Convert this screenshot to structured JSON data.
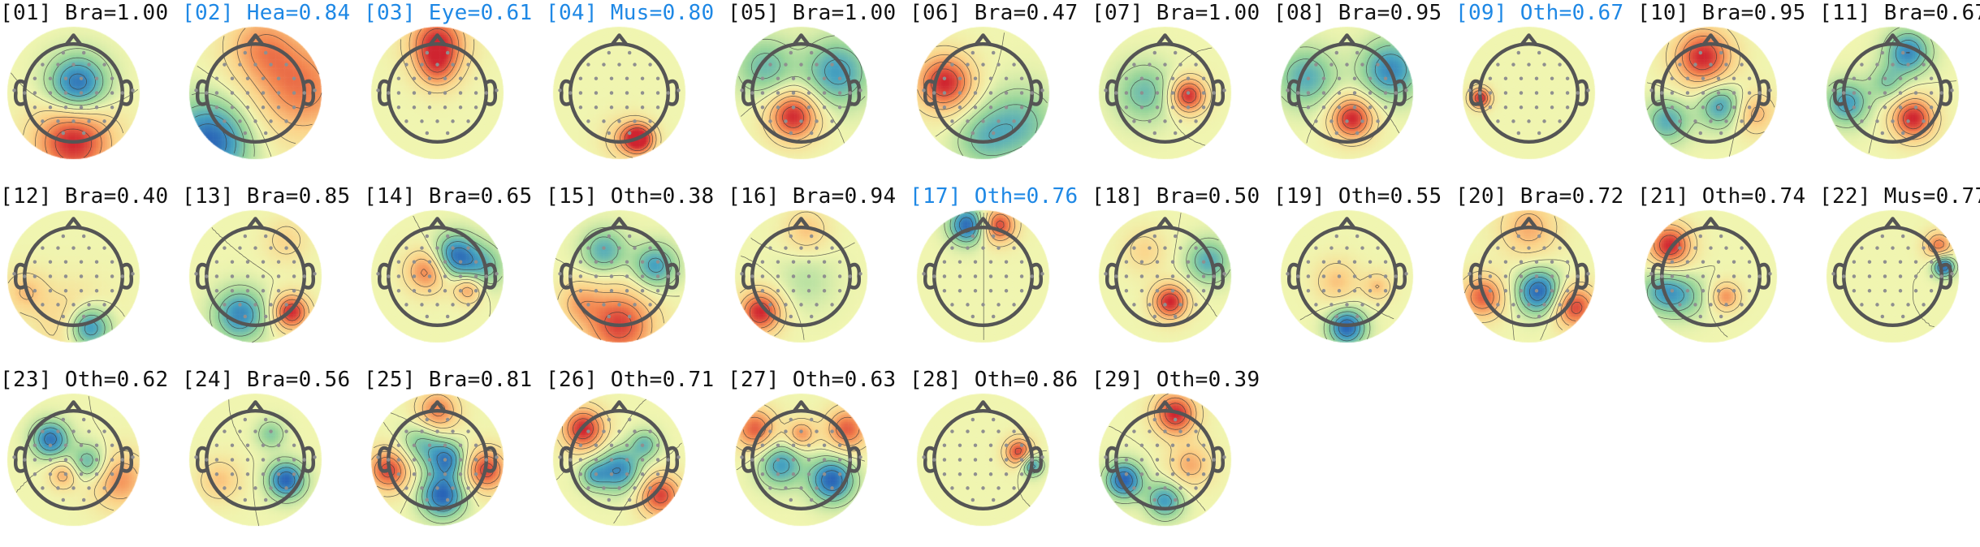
{
  "colors": {
    "flagged_label": "#1e88e5",
    "normal_label": "#111111",
    "head_outline": "#555555",
    "sensor_dot": "#8f8f8f",
    "colormap": [
      "#2a65b7",
      "#48a4c0",
      "#98d59a",
      "#f0f5b0",
      "#fbd48a",
      "#f38650",
      "#cf2530"
    ]
  },
  "components": [
    {
      "label": "[01] Bra=1.00",
      "flagged": false,
      "blobs": [
        [
          0.08,
          -0.15,
          0.4,
          -1.0
        ],
        [
          0.0,
          0.95,
          0.55,
          1.0
        ]
      ]
    },
    {
      "label": "[02] Hea=0.84",
      "flagged": true,
      "blobs": [
        [
          -0.9,
          0.95,
          0.55,
          -1.0
        ],
        [
          0.9,
          -0.1,
          0.7,
          0.7
        ],
        [
          0.1,
          -0.95,
          0.5,
          0.5
        ]
      ]
    },
    {
      "label": "[03] Eye=0.61",
      "flagged": true,
      "blobs": [
        [
          0.0,
          -1.0,
          0.4,
          0.95
        ],
        [
          0.0,
          -0.45,
          0.3,
          0.5
        ]
      ]
    },
    {
      "label": "[04] Mus=0.80",
      "flagged": true,
      "blobs": [
        [
          0.4,
          0.9,
          0.22,
          1.0
        ],
        [
          0.1,
          0.9,
          0.3,
          0.4
        ]
      ]
    },
    {
      "label": "[05] Bra=1.00",
      "flagged": false,
      "blobs": [
        [
          -0.15,
          0.45,
          0.35,
          1.0
        ],
        [
          0.7,
          -0.4,
          0.45,
          -0.7
        ],
        [
          -0.7,
          -0.5,
          0.4,
          -0.5
        ]
      ]
    },
    {
      "label": "[06] Bra=0.47",
      "flagged": false,
      "blobs": [
        [
          -0.75,
          -0.2,
          0.4,
          1.0
        ],
        [
          0.7,
          0.6,
          0.5,
          -0.5
        ],
        [
          0.0,
          0.9,
          0.4,
          -0.4
        ]
      ]
    },
    {
      "label": "[07] Bra=1.00",
      "flagged": false,
      "blobs": [
        [
          0.45,
          0.05,
          0.25,
          1.0
        ],
        [
          -0.4,
          0.0,
          0.4,
          -0.5
        ]
      ]
    },
    {
      "label": "[08] Bra=0.95",
      "flagged": false,
      "blobs": [
        [
          0.1,
          0.5,
          0.3,
          1.0
        ],
        [
          0.85,
          -0.45,
          0.4,
          -0.8
        ],
        [
          -0.8,
          -0.3,
          0.4,
          -0.6
        ]
      ]
    },
    {
      "label": "[09] Oth=0.67",
      "flagged": true,
      "blobs": [
        [
          -0.95,
          0.1,
          0.15,
          1.0
        ]
      ]
    },
    {
      "label": "[10] Bra=0.95",
      "flagged": false,
      "blobs": [
        [
          -0.15,
          -0.7,
          0.4,
          1.0
        ],
        [
          0.2,
          0.25,
          0.3,
          -0.7
        ],
        [
          -0.85,
          0.55,
          0.3,
          -0.6
        ],
        [
          0.85,
          0.4,
          0.3,
          0.5
        ]
      ]
    },
    {
      "label": "[11] Bra=0.67",
      "flagged": false,
      "blobs": [
        [
          0.4,
          0.5,
          0.3,
          1.0
        ],
        [
          0.3,
          -0.8,
          0.3,
          -0.8
        ],
        [
          -0.9,
          0.2,
          0.3,
          -0.7
        ],
        [
          -0.1,
          -0.2,
          0.25,
          -0.4
        ]
      ]
    },
    {
      "label": "[12] Bra=0.40",
      "flagged": false,
      "blobs": [
        [
          0.3,
          1.0,
          0.3,
          -1.0
        ],
        [
          0.0,
          0.9,
          0.5,
          0.4
        ],
        [
          -0.95,
          0.3,
          0.3,
          0.4
        ]
      ]
    },
    {
      "label": "[13] Bra=0.85",
      "flagged": false,
      "blobs": [
        [
          0.7,
          0.7,
          0.25,
          1.0
        ],
        [
          -0.3,
          0.75,
          0.35,
          -0.8
        ],
        [
          0.6,
          -0.7,
          0.3,
          0.3
        ]
      ]
    },
    {
      "label": "[14] Bra=0.65",
      "flagged": false,
      "blobs": [
        [
          0.35,
          -0.4,
          0.3,
          -0.9
        ],
        [
          -0.2,
          -0.1,
          0.3,
          0.7
        ],
        [
          0.6,
          0.25,
          0.2,
          0.6
        ],
        [
          0.9,
          -0.2,
          0.3,
          -0.5
        ]
      ]
    },
    {
      "label": "[15] Oth=0.38",
      "flagged": false,
      "blobs": [
        [
          -0.3,
          -0.5,
          0.3,
          -0.6
        ],
        [
          0.7,
          -0.2,
          0.3,
          -0.7
        ],
        [
          0.0,
          0.95,
          0.5,
          0.9
        ],
        [
          -0.8,
          0.5,
          0.3,
          0.4
        ]
      ]
    },
    {
      "label": "[16] Bra=0.94",
      "flagged": false,
      "blobs": [
        [
          -0.8,
          0.7,
          0.3,
          1.0
        ],
        [
          0.1,
          -0.9,
          0.3,
          0.4
        ],
        [
          0.1,
          0.1,
          0.4,
          -0.2
        ]
      ]
    },
    {
      "label": "[17] Oth=0.76",
      "flagged": true,
      "blobs": [
        [
          0.3,
          -1.0,
          0.25,
          0.9
        ],
        [
          -0.3,
          -1.0,
          0.25,
          -1.0
        ]
      ]
    },
    {
      "label": "[18] Bra=0.50",
      "flagged": false,
      "blobs": [
        [
          0.1,
          0.5,
          0.25,
          1.0
        ],
        [
          0.85,
          -0.3,
          0.3,
          -0.6
        ],
        [
          -0.4,
          -0.5,
          0.3,
          0.3
        ]
      ]
    },
    {
      "label": "[19] Oth=0.55",
      "flagged": false,
      "blobs": [
        [
          0.0,
          1.0,
          0.25,
          -1.0
        ],
        [
          -0.2,
          0.1,
          0.3,
          0.4
        ],
        [
          0.6,
          0.2,
          0.2,
          0.4
        ]
      ]
    },
    {
      "label": "[20] Bra=0.72",
      "flagged": false,
      "blobs": [
        [
          0.2,
          0.3,
          0.3,
          -1.0
        ],
        [
          -0.9,
          0.4,
          0.3,
          0.8
        ],
        [
          0.9,
          0.6,
          0.3,
          0.9
        ],
        [
          0.0,
          -0.95,
          0.4,
          0.5
        ]
      ]
    },
    {
      "label": "[21] Oth=0.74",
      "flagged": false,
      "blobs": [
        [
          -0.8,
          -0.6,
          0.3,
          1.0
        ],
        [
          -0.95,
          0.3,
          0.3,
          -0.6
        ],
        [
          0.3,
          0.4,
          0.2,
          0.6
        ],
        [
          -0.5,
          0.4,
          0.3,
          -0.4
        ]
      ]
    },
    {
      "label": "[22] Mus=0.77",
      "flagged": false,
      "blobs": [
        [
          1.0,
          -0.2,
          0.15,
          -1.0
        ],
        [
          0.9,
          -0.6,
          0.2,
          0.7
        ]
      ]
    },
    {
      "label": "[23] Oth=0.62",
      "flagged": false,
      "blobs": [
        [
          -0.45,
          -0.4,
          0.25,
          -0.9
        ],
        [
          0.3,
          0.05,
          0.25,
          -0.6
        ],
        [
          -0.2,
          0.3,
          0.2,
          0.5
        ],
        [
          0.9,
          0.4,
          0.4,
          0.6
        ]
      ]
    },
    {
      "label": "[24] Bra=0.56",
      "flagged": false,
      "blobs": [
        [
          0.6,
          0.4,
          0.25,
          -1.0
        ],
        [
          0.3,
          -0.5,
          0.2,
          -0.4
        ],
        [
          -0.7,
          0.4,
          0.3,
          0.4
        ]
      ]
    },
    {
      "label": "[25] Bra=0.81",
      "flagged": false,
      "blobs": [
        [
          0.1,
          0.7,
          0.3,
          -1.0
        ],
        [
          0.2,
          0.0,
          0.25,
          -0.8
        ],
        [
          -0.3,
          -0.3,
          0.3,
          -0.5
        ],
        [
          -0.95,
          0.2,
          0.3,
          0.9
        ],
        [
          0.95,
          0.2,
          0.3,
          0.9
        ],
        [
          0.0,
          -0.95,
          0.3,
          0.7
        ]
      ]
    },
    {
      "label": "[26] Oth=0.71",
      "flagged": false,
      "blobs": [
        [
          -0.7,
          -0.6,
          0.3,
          1.0
        ],
        [
          0.0,
          0.2,
          0.3,
          -0.8
        ],
        [
          -0.5,
          0.3,
          0.2,
          -0.5
        ],
        [
          0.5,
          -0.3,
          0.2,
          -0.5
        ],
        [
          0.8,
          0.7,
          0.3,
          0.9
        ]
      ]
    },
    {
      "label": "[27] Oth=0.63",
      "flagged": false,
      "blobs": [
        [
          0.6,
          0.4,
          0.3,
          -1.0
        ],
        [
          -0.4,
          0.1,
          0.3,
          -0.7
        ],
        [
          0.0,
          -0.5,
          0.2,
          0.6
        ],
        [
          -0.9,
          -0.6,
          0.3,
          0.8
        ],
        [
          0.9,
          -0.6,
          0.3,
          0.8
        ]
      ]
    },
    {
      "label": "[28] Oth=0.86",
      "flagged": false,
      "blobs": [
        [
          0.7,
          -0.15,
          0.2,
          0.9
        ],
        [
          0.95,
          0.1,
          0.15,
          -0.8
        ]
      ]
    },
    {
      "label": "[29] Oth=0.39",
      "flagged": false,
      "blobs": [
        [
          0.2,
          -0.9,
          0.3,
          1.0
        ],
        [
          -0.8,
          0.4,
          0.25,
          -1.0
        ],
        [
          0.0,
          0.8,
          0.25,
          -0.7
        ],
        [
          0.5,
          0.1,
          0.3,
          0.5
        ]
      ]
    }
  ]
}
